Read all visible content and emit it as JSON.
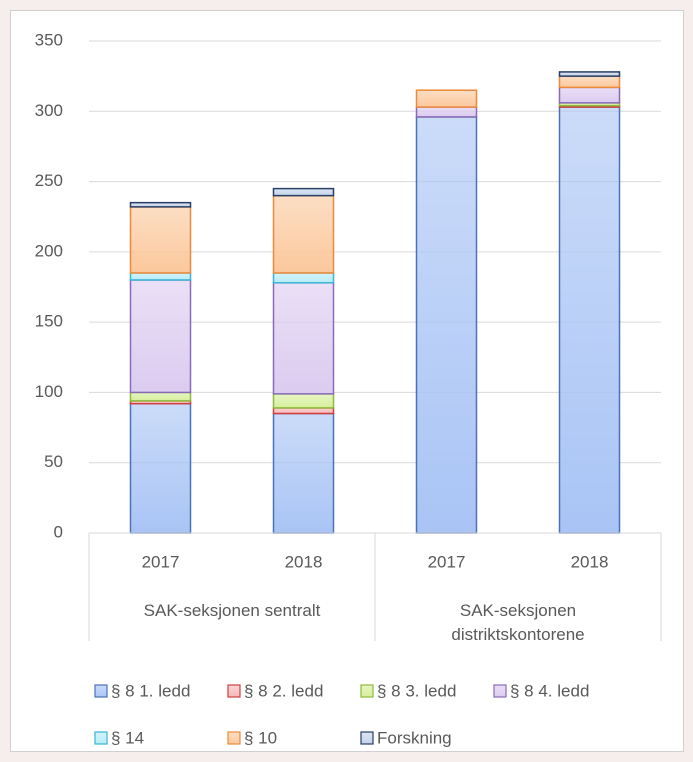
{
  "chart_data": {
    "type": "stacked_bar",
    "categories": [
      "2017",
      "2018",
      "2017",
      "2018"
    ],
    "groups": [
      {
        "label": "SAK-seksjonen sentralt",
        "size": 2
      },
      {
        "label": "SAK-seksjonen distriktskontorene",
        "size": 2
      }
    ],
    "series": [
      {
        "name": "§ 8  1. ledd",
        "color": "#a9c4f5",
        "border": "#4a72b8",
        "values": [
          92,
          85,
          296,
          303
        ]
      },
      {
        "name": "§ 8  2. ledd",
        "color": "#f6b8b8",
        "border": "#d04040",
        "values": [
          2,
          4,
          0,
          1
        ]
      },
      {
        "name": "§ 8  3. ledd",
        "color": "#d6ef9c",
        "border": "#8dba3a",
        "values": [
          6,
          10,
          0,
          2
        ]
      },
      {
        "name": "§ 8  4. ledd",
        "color": "#dccbf0",
        "border": "#8a6ab8",
        "values": [
          80,
          79,
          7,
          11
        ]
      },
      {
        "name": "§ 14",
        "color": "#b7ecf7",
        "border": "#3ab3d6",
        "values": [
          5,
          7,
          0,
          0
        ]
      },
      {
        "name": "§ 10",
        "color": "#fbc89c",
        "border": "#ec8a3a",
        "values": [
          47,
          55,
          12,
          8
        ]
      },
      {
        "name": "Forskning",
        "color": "#c4d3ea",
        "border": "#2a3f66",
        "values": [
          3,
          5,
          0,
          3
        ]
      }
    ],
    "ylim": [
      0,
      350
    ],
    "yticks": [
      0,
      50,
      100,
      150,
      200,
      250,
      300,
      350
    ],
    "grid": true
  }
}
